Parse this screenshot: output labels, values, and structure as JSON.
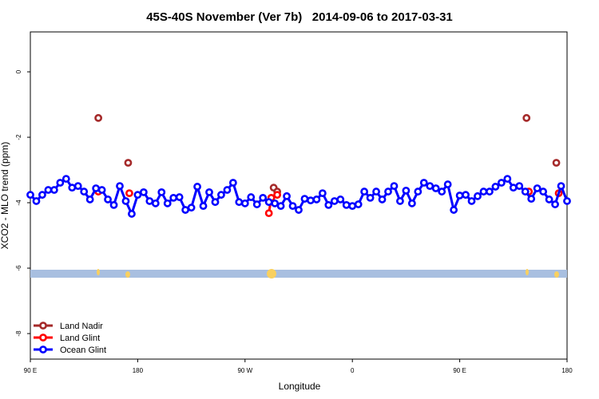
{
  "chart_data": {
    "type": "line",
    "title": "45S-40S November (Ver 7b)   2014-09-06 to 2017-03-31",
    "x_label": "Longitude",
    "y_label": "XCO2 - MLO trend (ppm)",
    "xlim": [
      90,
      540
    ],
    "ylim": [
      -8.78,
      1.22
    ],
    "xticks": [
      {
        "value": 90,
        "label": "90 E"
      },
      {
        "value": 180,
        "label": "180"
      },
      {
        "value": 270,
        "label": "90 W"
      },
      {
        "value": 360,
        "label": "0"
      },
      {
        "value": 450,
        "label": "90 E"
      },
      {
        "value": 540,
        "label": "180"
      }
    ],
    "yticks": [
      -8,
      -6,
      -4,
      -2,
      0
    ],
    "legend": "bottom-left",
    "series": [
      {
        "name": "Land Nadir",
        "color": "#a52a2a",
        "x": [
          147,
          172,
          294,
          297,
          506,
          531
        ],
        "values": [
          -1.41,
          -2.78,
          -3.54,
          -3.66,
          -1.41,
          -2.78
        ]
      },
      {
        "name": "Land Glint",
        "color": "#ff0000",
        "x": [
          147,
          173,
          290,
          292,
          297,
          508,
          533
        ],
        "values": [
          -3.66,
          -3.71,
          -4.32,
          -3.85,
          -3.76,
          -3.66,
          -3.71
        ]
      },
      {
        "name": "Ocean Glint",
        "color": "#0000ff",
        "x": [
          90,
          95,
          100,
          105,
          110,
          115,
          120,
          125,
          130,
          135,
          140,
          145,
          150,
          155,
          160,
          165,
          170,
          175,
          180,
          185,
          190,
          195,
          200,
          205,
          210,
          215,
          220,
          225,
          230,
          235,
          240,
          245,
          250,
          255,
          260,
          265,
          270,
          275,
          280,
          285,
          290,
          295,
          300,
          305,
          310,
          315,
          320,
          325,
          330,
          335,
          340,
          345,
          350,
          355,
          360,
          365,
          370,
          375,
          380,
          385,
          390,
          395,
          400,
          405,
          410,
          415,
          420,
          425,
          430,
          435,
          440,
          445,
          450,
          455,
          460,
          465,
          470,
          475,
          480,
          485,
          490,
          495,
          500,
          505,
          510,
          515,
          520,
          525,
          530,
          535,
          540
        ],
        "values": [
          -3.76,
          -3.95,
          -3.76,
          -3.61,
          -3.61,
          -3.39,
          -3.27,
          -3.54,
          -3.49,
          -3.66,
          -3.9,
          -3.56,
          -3.61,
          -3.9,
          -4.07,
          -3.49,
          -3.95,
          -4.34,
          -3.76,
          -3.68,
          -3.95,
          -4.02,
          -3.68,
          -4.02,
          -3.85,
          -3.83,
          -4.22,
          -4.15,
          -3.51,
          -4.1,
          -3.68,
          -3.98,
          -3.76,
          -3.61,
          -3.39,
          -3.98,
          -4.02,
          -3.83,
          -4.05,
          -3.85,
          -3.98,
          -4.02,
          -4.1,
          -3.8,
          -4.1,
          -4.22,
          -3.88,
          -3.93,
          -3.9,
          -3.71,
          -4.07,
          -3.95,
          -3.9,
          -4.07,
          -4.1,
          -4.05,
          -3.66,
          -3.85,
          -3.66,
          -3.9,
          -3.66,
          -3.49,
          -3.95,
          -3.63,
          -4.02,
          -3.66,
          -3.39,
          -3.49,
          -3.56,
          -3.66,
          -3.44,
          -4.22,
          -3.78,
          -3.76,
          -3.95,
          -3.8,
          -3.66,
          -3.66,
          -3.51,
          -3.39,
          -3.27,
          -3.54,
          -3.49,
          -3.66,
          -3.88,
          -3.56,
          -3.66,
          -3.9,
          -4.05,
          -3.49,
          -3.95
        ]
      }
    ]
  }
}
